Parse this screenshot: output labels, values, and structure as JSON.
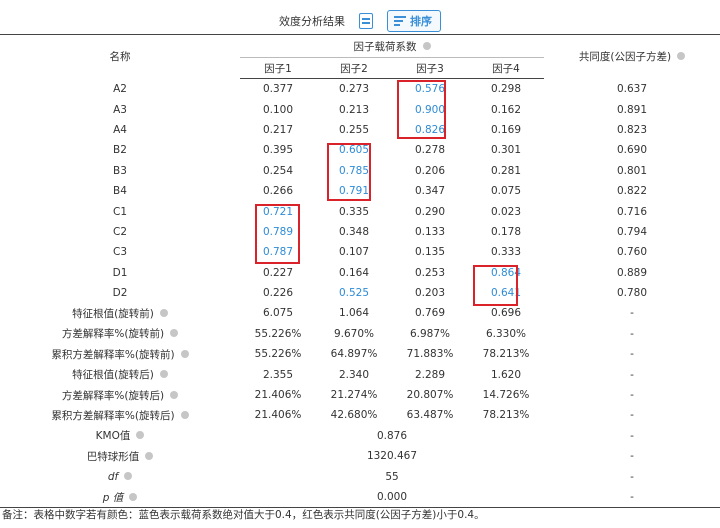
{
  "toolbar": {
    "title": "效度分析结果",
    "doc_icon": "document-icon",
    "sort_label": "排序",
    "sort_icon": "sort-lines-icon",
    "accent": "#3a8fd6"
  },
  "table": {
    "name_header": "名称",
    "loading_header": "因子载荷系数",
    "communality_header": "共同度(公因子方差)",
    "factor_headers": [
      "因子1",
      "因子2",
      "因子3",
      "因子4"
    ],
    "rows": [
      {
        "name": "A2",
        "f": [
          "0.377",
          "0.273",
          "0.576",
          "0.298"
        ],
        "c": "0.637",
        "blue": [
          2
        ]
      },
      {
        "name": "A3",
        "f": [
          "0.100",
          "0.213",
          "0.900",
          "0.162"
        ],
        "c": "0.891",
        "blue": [
          2
        ]
      },
      {
        "name": "A4",
        "f": [
          "0.217",
          "0.255",
          "0.826",
          "0.169"
        ],
        "c": "0.823",
        "blue": [
          2
        ]
      },
      {
        "name": "B2",
        "f": [
          "0.395",
          "0.605",
          "0.278",
          "0.301"
        ],
        "c": "0.690",
        "blue": [
          1
        ]
      },
      {
        "name": "B3",
        "f": [
          "0.254",
          "0.785",
          "0.206",
          "0.281"
        ],
        "c": "0.801",
        "blue": [
          1
        ]
      },
      {
        "name": "B4",
        "f": [
          "0.266",
          "0.791",
          "0.347",
          "0.075"
        ],
        "c": "0.822",
        "blue": [
          1
        ]
      },
      {
        "name": "C1",
        "f": [
          "0.721",
          "0.335",
          "0.290",
          "0.023"
        ],
        "c": "0.716",
        "blue": [
          0
        ]
      },
      {
        "name": "C2",
        "f": [
          "0.789",
          "0.348",
          "0.133",
          "0.178"
        ],
        "c": "0.794",
        "blue": [
          0
        ]
      },
      {
        "name": "C3",
        "f": [
          "0.787",
          "0.107",
          "0.135",
          "0.333"
        ],
        "c": "0.760",
        "blue": [
          0
        ]
      },
      {
        "name": "D1",
        "f": [
          "0.227",
          "0.164",
          "0.253",
          "0.864"
        ],
        "c": "0.889",
        "blue": [
          3
        ]
      },
      {
        "name": "D2",
        "f": [
          "0.226",
          "0.525",
          "0.203",
          "0.641"
        ],
        "c": "0.780",
        "blue": [
          1,
          3
        ]
      },
      {
        "name": "特征根值(旋转前)",
        "f": [
          "6.075",
          "1.064",
          "0.769",
          "0.696"
        ],
        "c": "-",
        "blue": [],
        "q": true
      },
      {
        "name": "方差解释率%(旋转前)",
        "f": [
          "55.226%",
          "9.670%",
          "6.987%",
          "6.330%"
        ],
        "c": "-",
        "blue": [],
        "q": true
      },
      {
        "name": "累积方差解释率%(旋转前)",
        "f": [
          "55.226%",
          "64.897%",
          "71.883%",
          "78.213%"
        ],
        "c": "-",
        "blue": [],
        "q": true
      },
      {
        "name": "特征根值(旋转后)",
        "f": [
          "2.355",
          "2.340",
          "2.289",
          "1.620"
        ],
        "c": "-",
        "blue": [],
        "q": true
      },
      {
        "name": "方差解释率%(旋转后)",
        "f": [
          "21.406%",
          "21.274%",
          "20.807%",
          "14.726%"
        ],
        "c": "-",
        "blue": [],
        "q": true
      },
      {
        "name": "累积方差解释率%(旋转后)",
        "f": [
          "21.406%",
          "42.680%",
          "63.487%",
          "78.213%"
        ],
        "c": "-",
        "blue": [],
        "q": true
      }
    ],
    "stats": [
      {
        "name": "KMO值",
        "value": "0.876",
        "c": "-",
        "italic": false
      },
      {
        "name": "巴特球形值",
        "value": "1320.467",
        "c": "-",
        "italic": false
      },
      {
        "name": "df",
        "value": "55",
        "c": "-",
        "italic": true
      },
      {
        "name": "p 值",
        "value": "0.000",
        "c": "-",
        "italic": true
      }
    ],
    "blue_color": "#2e8bd6",
    "highlight_color": "#d9222a"
  },
  "note": "备注：表格中数字若有颜色：蓝色表示载荷系数绝对值大于0.4，红色表示共同度(公因子方差)小于0.4。"
}
